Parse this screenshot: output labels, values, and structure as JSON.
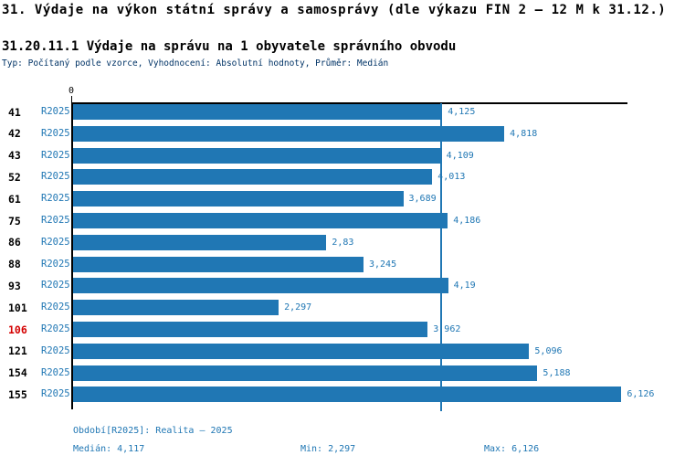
{
  "header": {
    "title": "31. Výdaje na výkon státní správy a samosprávy (dle výkazu FIN 2 – 12 M k 31.12.)",
    "subtitle": "31.20.11.1 Výdaje na správu na 1 obyvatele správního obvodu",
    "meta": "Typ: Počítaný podle vzorce, Vyhodnocení: Absolutní hodnoty, Průměr: Medián"
  },
  "chart_data": {
    "type": "bar",
    "orientation": "horizontal",
    "title": "31.20.11.1 Výdaje na správu na 1 obyvatele správního obvodu",
    "categories": [
      "41",
      "42",
      "43",
      "52",
      "61",
      "75",
      "86",
      "88",
      "93",
      "101",
      "106",
      "121",
      "154",
      "155"
    ],
    "series": [
      {
        "name": "R2025",
        "values": [
          4.125,
          4.818,
          4.109,
          4.013,
          3.689,
          4.186,
          2.83,
          3.245,
          4.19,
          2.297,
          3.962,
          5.096,
          5.188,
          6.126
        ],
        "value_labels": [
          "4,125",
          "4,818",
          "4,109",
          "4,013",
          "3,689",
          "4,186",
          "2,83",
          "3,245",
          "4,19",
          "2,297",
          "3,962",
          "5,096",
          "5,188",
          "6,126"
        ]
      }
    ],
    "highlighted_category": "106",
    "median_value": 4.117,
    "x_axis_zero_label": "0",
    "xlim": [
      0,
      6.2
    ],
    "grid": false,
    "legend_position": "none",
    "bar_color": "#2077b4",
    "highlight_color": "#d40000",
    "text_blue": "#2077b4",
    "meta_text_color": "#003366"
  },
  "footer": {
    "period": "Období[R2025]: Realita – 2025",
    "median": "Medián: 4,117",
    "min": "Min: 2,297",
    "max": "Max: 6,126"
  }
}
